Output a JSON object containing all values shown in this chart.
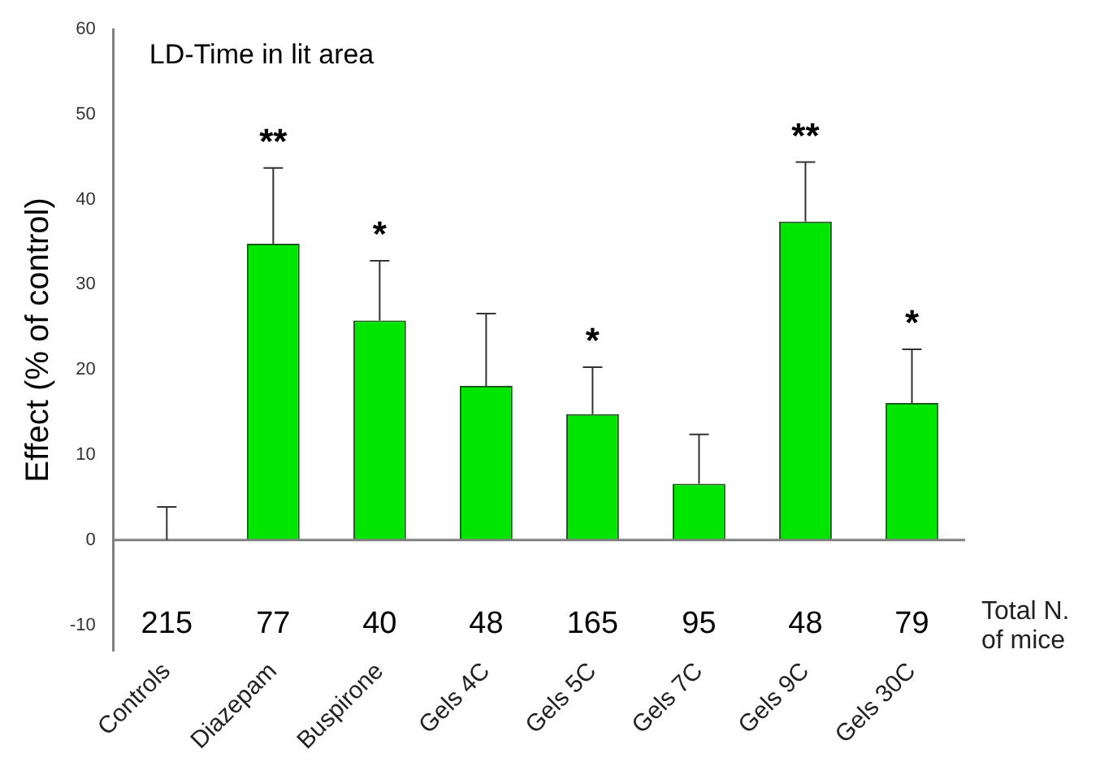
{
  "chart_data": {
    "type": "bar",
    "title": "LD-Time in lit area",
    "ylabel": "Effect (% of control)",
    "categories": [
      "Controls",
      "Diazepam",
      "Buspirone",
      "Gels 4C",
      "Gels 5C",
      "Gels 7C",
      "Gels 9C",
      "Gels 30C"
    ],
    "values": [
      0,
      34.8,
      25.8,
      18.1,
      14.8,
      6.6,
      37.4,
      16.1
    ],
    "errors": [
      [
        0,
        3.9
      ],
      [
        34.8,
        43.7
      ],
      [
        25.8,
        32.8
      ],
      [
        18.1,
        26.6
      ],
      [
        14.8,
        20.3
      ],
      [
        6.6,
        12.4
      ],
      [
        37.4,
        44.4
      ],
      [
        16.1,
        22.4
      ]
    ],
    "color": "#00e600",
    "value_labels": [
      null,
      "**",
      "*",
      null,
      "*",
      null,
      "**",
      "*"
    ],
    "ylim": [
      -13,
      60
    ],
    "yticks": [
      -10,
      0,
      10,
      20,
      30,
      40,
      50,
      60
    ],
    "ref_lines": [
      {
        "axis": "y",
        "value": 0,
        "color": "#808080"
      }
    ],
    "grid": false,
    "legend": false,
    "annotations": [
      "215",
      "77",
      "40",
      "48",
      "165",
      "95",
      "48",
      "79",
      "Total N. of mice"
    ]
  }
}
